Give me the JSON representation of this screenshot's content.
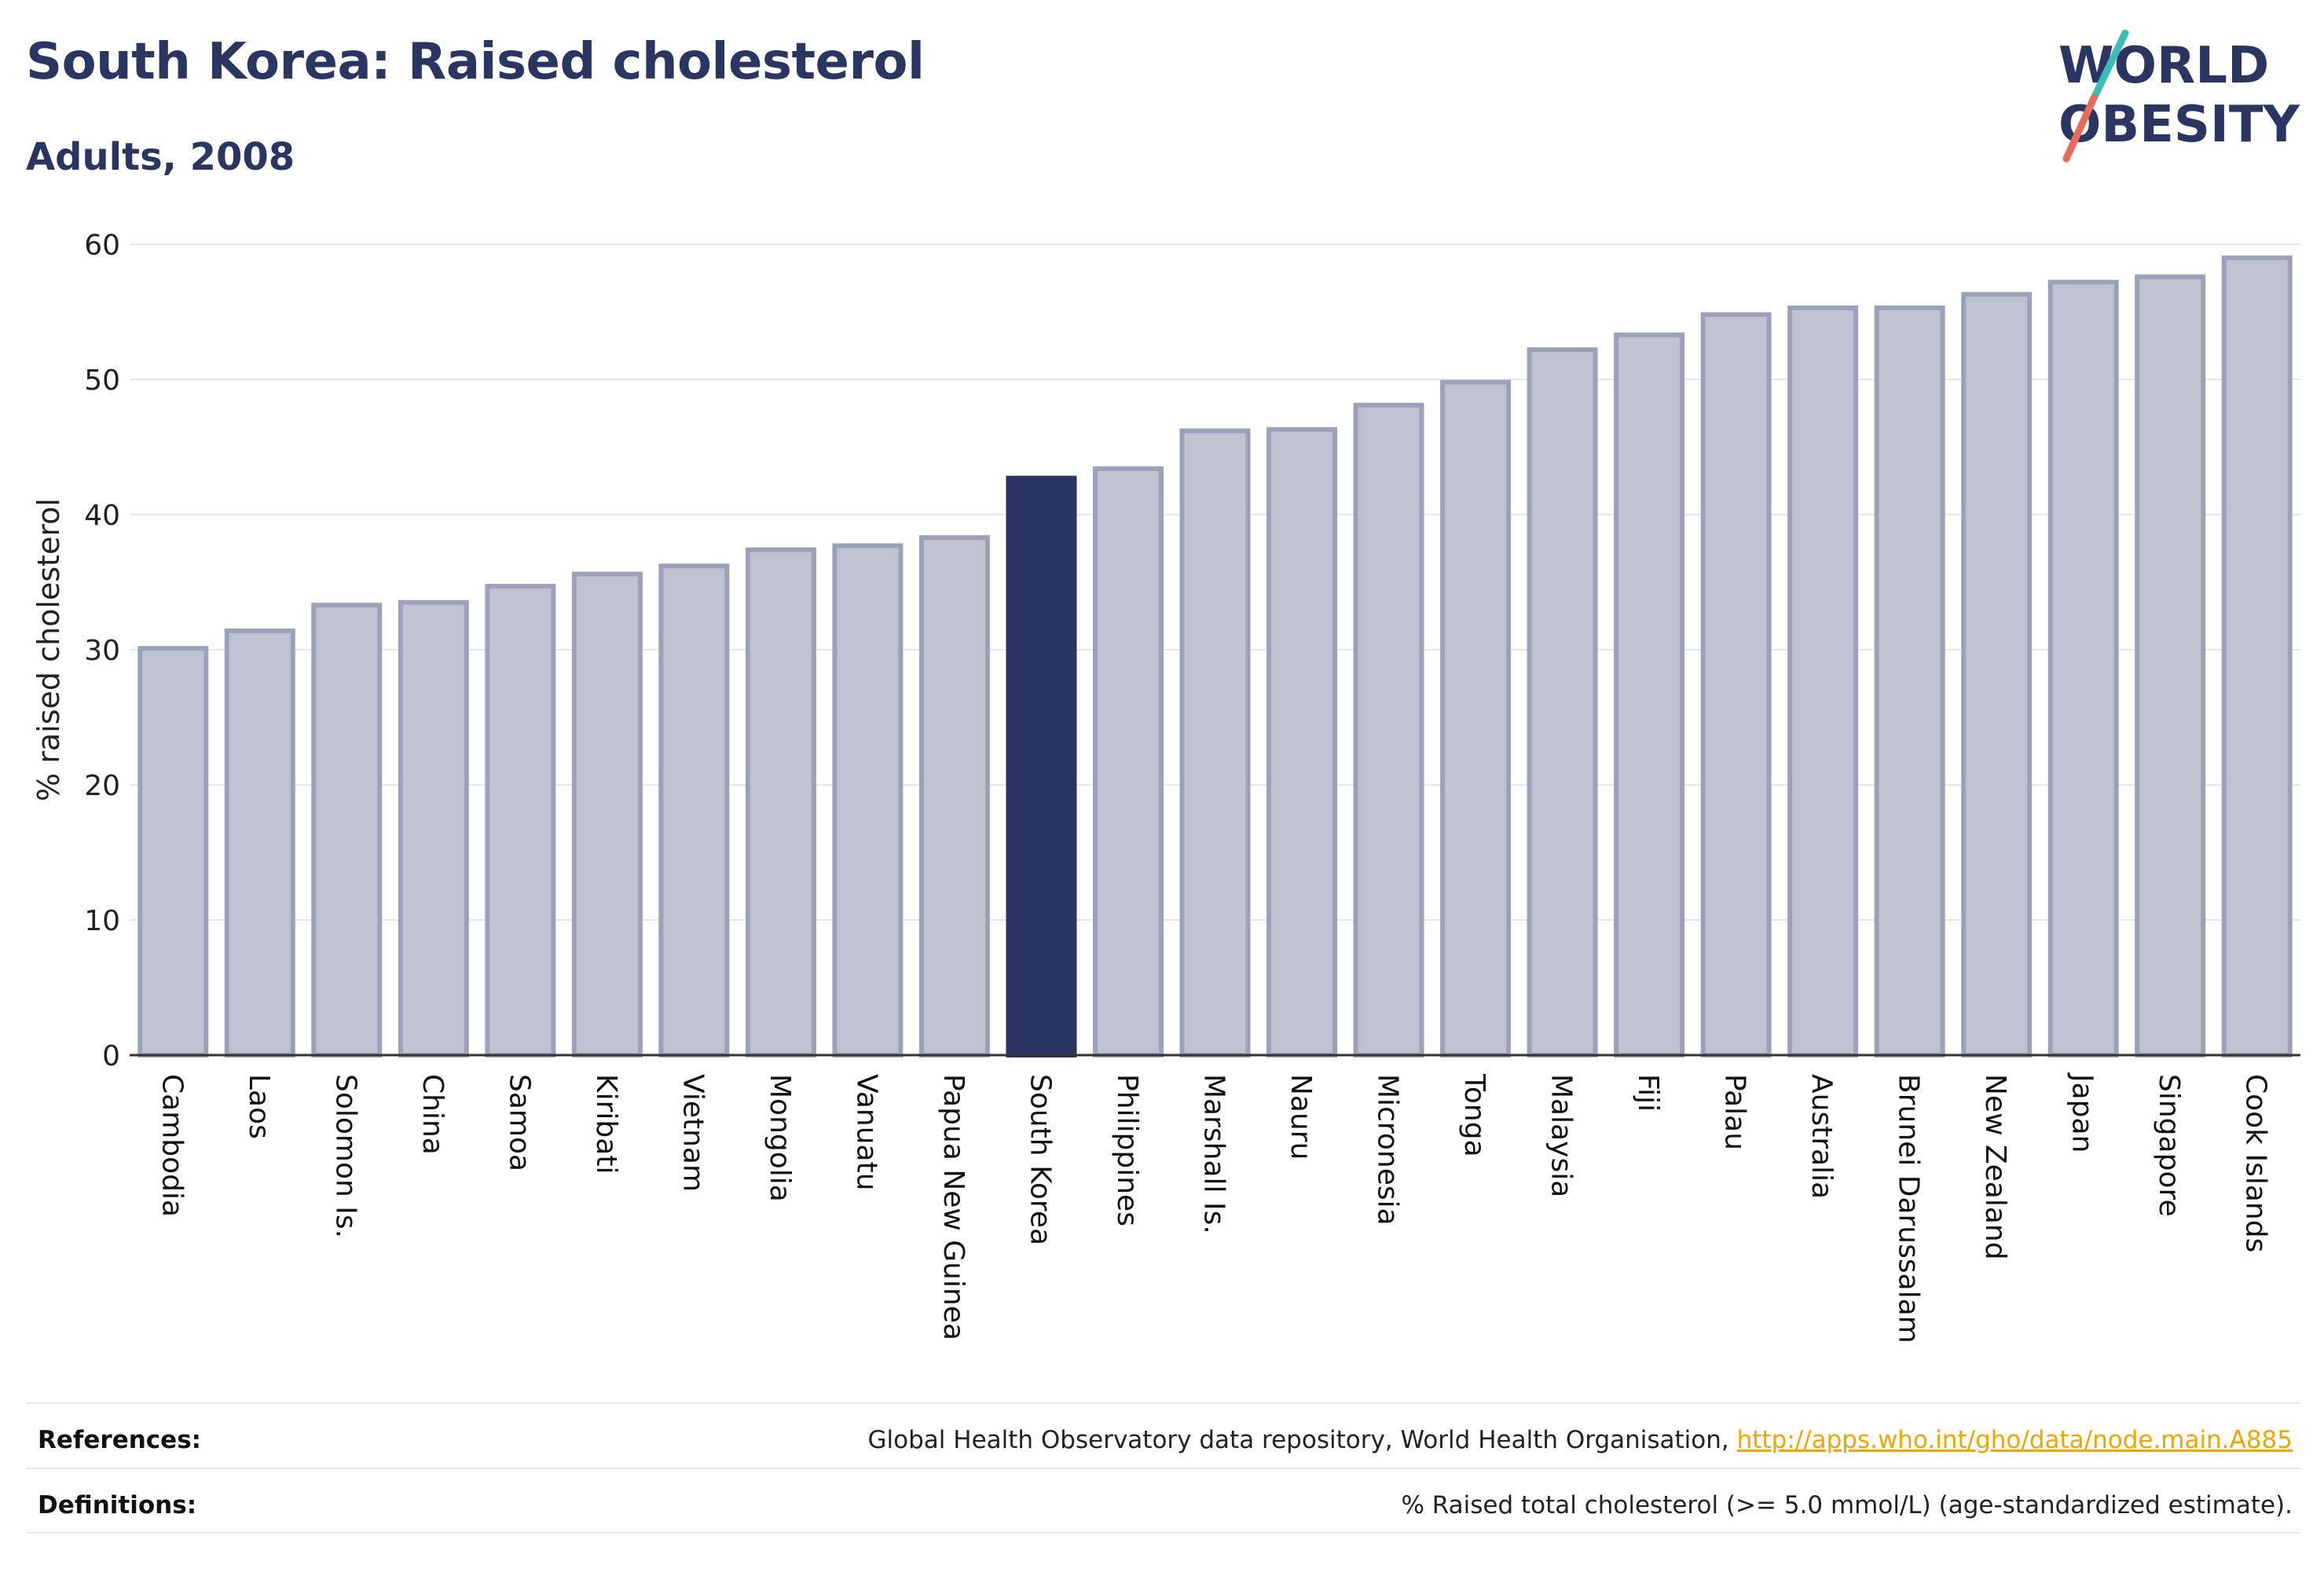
{
  "header": {
    "title": "South Korea: Raised cholesterol",
    "subtitle": "Adults, 2008"
  },
  "logo": {
    "line1": "WORLD",
    "line2": "OBESITY",
    "colors": {
      "text": "#2b3561",
      "slash_teal": "#3bbdb8",
      "slash_coral": "#e86a5a"
    }
  },
  "chart_data": {
    "type": "bar",
    "ylabel": "% raised cholesterol",
    "xlabel": "",
    "ylim": [
      0,
      60
    ],
    "yticks": [
      0,
      10,
      20,
      30,
      40,
      50,
      60
    ],
    "grid": true,
    "highlight": "South Korea",
    "colors": {
      "bar": "#bfc3d1",
      "bar_border": "#9ca1ba",
      "highlight": "#2b3561",
      "grid": "#e6e8ef",
      "axis": "#333333"
    },
    "categories": [
      "Cambodia",
      "Laos",
      "Solomon Is.",
      "China",
      "Samoa",
      "Kiribati",
      "Vietnam",
      "Mongolia",
      "Vanuatu",
      "Papua New Guinea",
      "South Korea",
      "Philippines",
      "Marshall Is.",
      "Nauru",
      "Micronesia",
      "Tonga",
      "Malaysia",
      "Fiji",
      "Palau",
      "Australia",
      "Brunei Darussalam",
      "New Zealand",
      "Japan",
      "Singapore",
      "Cook Islands"
    ],
    "values": [
      30.1,
      31.4,
      33.3,
      33.5,
      34.7,
      35.6,
      36.2,
      37.4,
      37.7,
      38.3,
      42.7,
      43.4,
      46.2,
      46.3,
      48.1,
      49.8,
      52.2,
      53.3,
      54.8,
      55.3,
      55.3,
      56.3,
      57.2,
      57.6,
      59.0
    ]
  },
  "footer": {
    "references_label": "References:",
    "references_text": "Global Health Observatory data repository, World Health Organisation, ",
    "references_link": "http://apps.who.int/gho/data/node.main.A885",
    "definitions_label": "Definitions:",
    "definitions_text": "% Raised total cholesterol (>= 5.0 mmol/L) (age-standardized estimate)."
  }
}
